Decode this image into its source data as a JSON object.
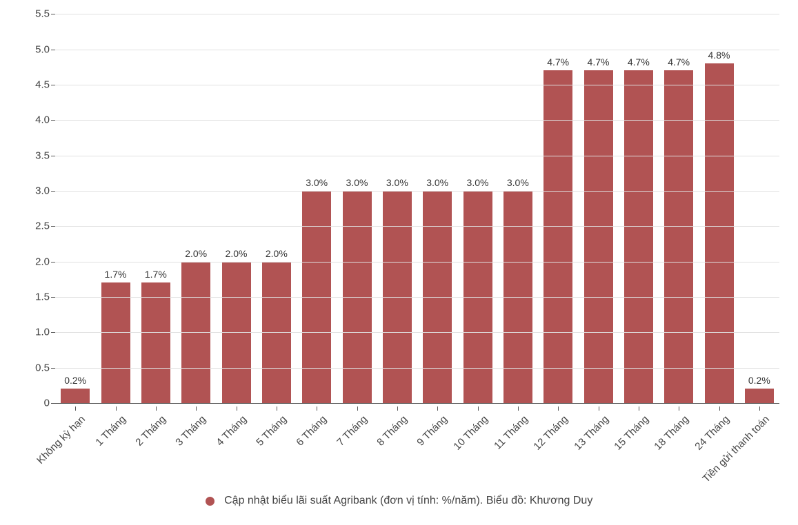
{
  "chart": {
    "type": "bar",
    "background_color": "#ffffff",
    "grid_color": "#e0e0e0",
    "axis_color": "#555555",
    "text_color": "#444444",
    "bar_color": "#b15353",
    "title_fontsize": 16,
    "label_fontsize": 15,
    "value_fontsize": 14,
    "ylim": [
      0,
      5.6
    ],
    "y_ticks": [
      0,
      0.5,
      1.0,
      1.5,
      2.0,
      2.5,
      3.0,
      3.5,
      4.0,
      4.5,
      5.0,
      5.5
    ],
    "y_tick_labels": [
      "0",
      "0.5",
      "1.0",
      "1.5",
      "2.0",
      "2.5",
      "3.0",
      "3.5",
      "4.0",
      "4.5",
      "5.0",
      "5.5"
    ],
    "bar_width_ratio": 0.72,
    "categories": [
      "Không kỳ hạn",
      "1 Tháng",
      "2 Tháng",
      "3 Tháng",
      "4 Tháng",
      "5 Tháng",
      "6 Tháng",
      "7 Tháng",
      "8 Tháng",
      "9 Tháng",
      "10 Tháng",
      "11 Tháng",
      "12 Tháng",
      "13 Tháng",
      "15 Tháng",
      "18 Tháng",
      "24 Tháng",
      "Tiền gửi thanh toán"
    ],
    "values": [
      0.2,
      1.7,
      1.7,
      2.0,
      2.0,
      2.0,
      3.0,
      3.0,
      3.0,
      3.0,
      3.0,
      3.0,
      4.7,
      4.7,
      4.7,
      4.7,
      4.8,
      0.2
    ],
    "value_labels": [
      "0.2%",
      "1.7%",
      "1.7%",
      "2.0%",
      "2.0%",
      "2.0%",
      "3.0%",
      "3.0%",
      "3.0%",
      "3.0%",
      "3.0%",
      "3.0%",
      "4.7%",
      "4.7%",
      "4.7%",
      "4.7%",
      "4.8%",
      "0.2%"
    ],
    "legend_text": "Cập nhật biểu lãi suất Agribank (đơn vị tính: %/năm). Biểu đồ: Khương Duy",
    "x_label_rotation": -45
  }
}
